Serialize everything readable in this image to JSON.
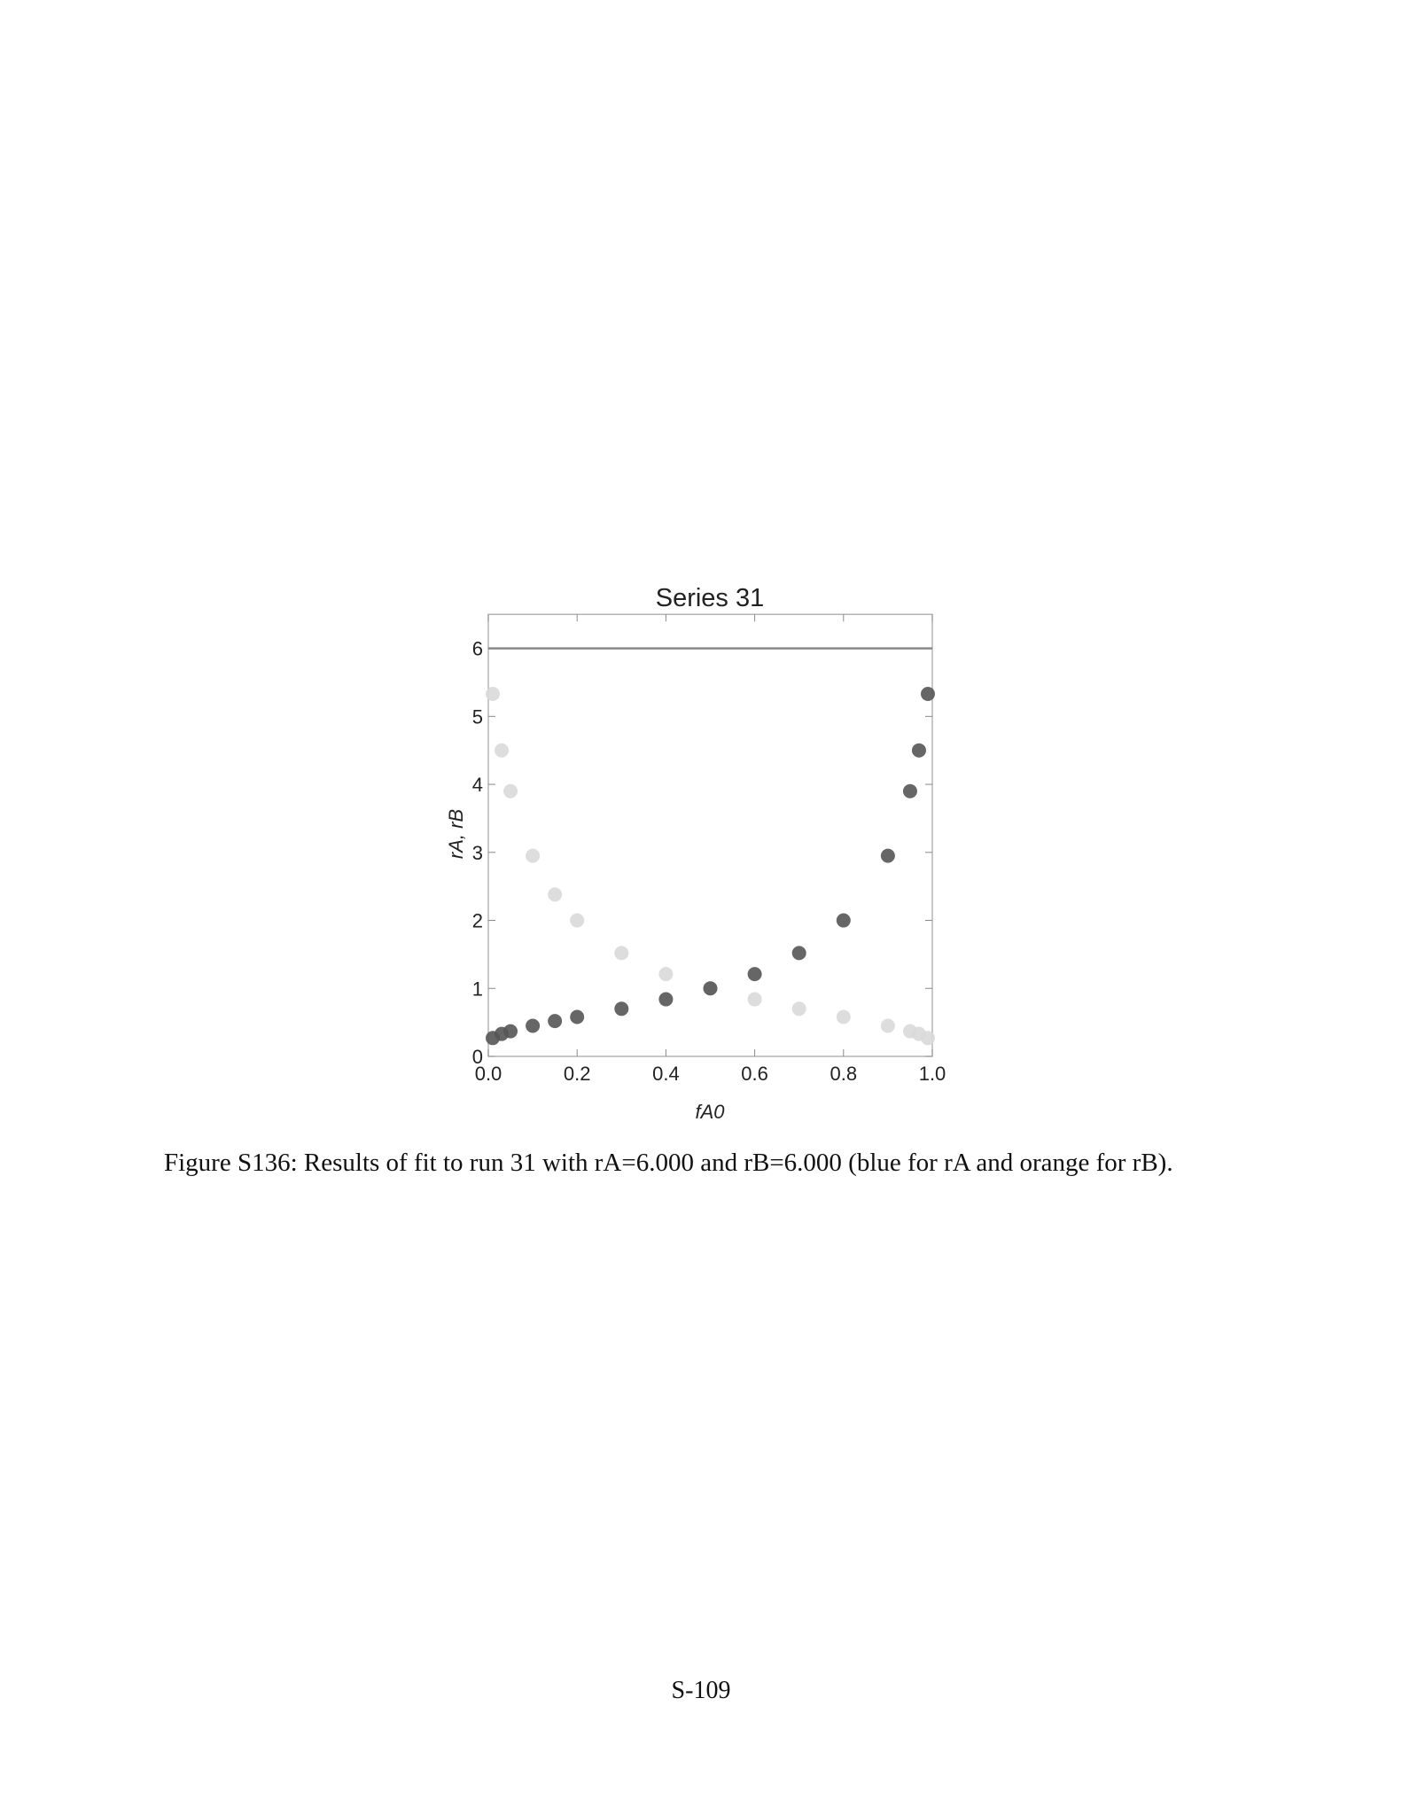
{
  "chart_data": {
    "type": "scatter",
    "title": "Series 31",
    "xlabel": "fA0",
    "ylabel": "rA, rB",
    "x": [
      0.01,
      0.03,
      0.05,
      0.1,
      0.15,
      0.2,
      0.3,
      0.4,
      0.5,
      0.6,
      0.7,
      0.8,
      0.9,
      0.95,
      0.97,
      0.99
    ],
    "series": [
      {
        "color": "#555555",
        "values": [
          0.27,
          0.33,
          0.37,
          0.45,
          0.52,
          0.58,
          0.7,
          0.84,
          1.0,
          1.21,
          1.52,
          2.0,
          2.95,
          3.9,
          4.5,
          5.33
        ]
      },
      {
        "color": "#d9d9d9",
        "values": [
          5.33,
          4.5,
          3.9,
          2.95,
          2.38,
          2.0,
          1.52,
          1.21,
          1.0,
          0.84,
          0.7,
          0.58,
          0.45,
          0.37,
          0.33,
          0.27
        ]
      }
    ],
    "hlines": [
      6
    ],
    "xlim": [
      0,
      1
    ],
    "ylim": [
      0,
      6.5
    ],
    "xticks": [
      {
        "value": 0,
        "label": "0.0"
      },
      0.2,
      0.4,
      0.6,
      0.8,
      {
        "value": 1,
        "label": "1.0"
      }
    ],
    "yticks": [
      0,
      1,
      2,
      3,
      4,
      5,
      6
    ]
  },
  "caption": "Figure S136: Results of fit to run 31 with rA=6.000 and rB=6.000 (blue for rA and orange for rB).",
  "page_number": "S-109"
}
